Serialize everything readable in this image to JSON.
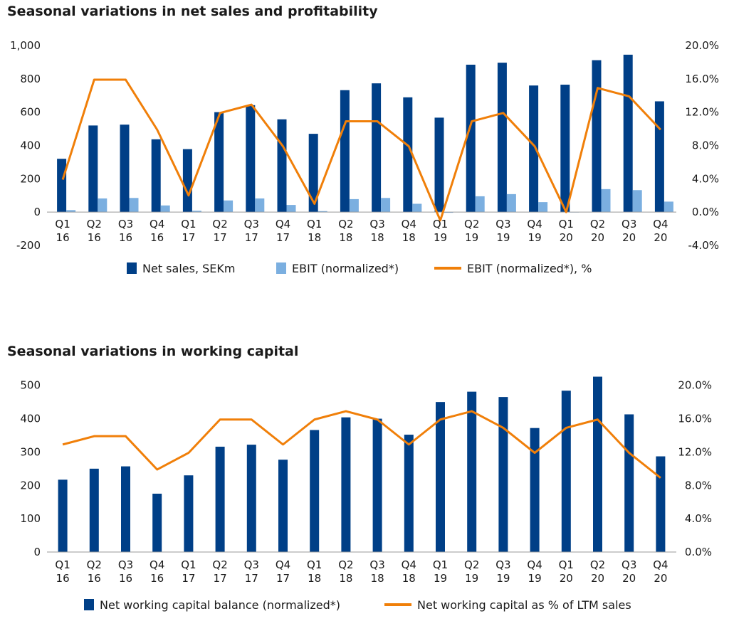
{
  "chart_data": [
    {
      "type": "bar",
      "title": "Seasonal variations in net sales and profitability",
      "categories": [
        [
          "Q1",
          "16"
        ],
        [
          "Q2",
          "16"
        ],
        [
          "Q3",
          "16"
        ],
        [
          "Q4",
          "16"
        ],
        [
          "Q1",
          "17"
        ],
        [
          "Q2",
          "17"
        ],
        [
          "Q3",
          "17"
        ],
        [
          "Q4",
          "17"
        ],
        [
          "Q1",
          "18"
        ],
        [
          "Q2",
          "18"
        ],
        [
          "Q3",
          "18"
        ],
        [
          "Q4",
          "18"
        ],
        [
          "Q1",
          "19"
        ],
        [
          "Q2",
          "19"
        ],
        [
          "Q3",
          "19"
        ],
        [
          "Q4",
          "19"
        ],
        [
          "Q1",
          "20"
        ],
        [
          "Q2",
          "20"
        ],
        [
          "Q3",
          "20"
        ],
        [
          "Q4",
          "20"
        ]
      ],
      "series": [
        {
          "name": "Net sales, SEKm",
          "kind": "bar",
          "axis": "left",
          "color": "#003F87",
          "values": [
            320,
            520,
            525,
            437,
            378,
            600,
            642,
            557,
            470,
            732,
            773,
            689,
            567,
            885,
            897,
            760,
            765,
            912,
            945,
            665
          ]
        },
        {
          "name": "EBIT (normalized*)",
          "kind": "bar",
          "axis": "left",
          "color": "#7BAFE0",
          "values": [
            12,
            82,
            85,
            40,
            8,
            70,
            82,
            43,
            6,
            78,
            85,
            50,
            -4,
            95,
            108,
            60,
            0,
            138,
            132,
            63
          ]
        },
        {
          "name": "EBIT (normalized*), %",
          "kind": "line",
          "axis": "right",
          "color": "#F07F09",
          "values": [
            0.039,
            0.159,
            0.159,
            0.099,
            0.02,
            0.119,
            0.129,
            0.079,
            0.01,
            0.109,
            0.109,
            0.079,
            -0.01,
            0.109,
            0.119,
            0.079,
            0.0,
            0.149,
            0.139,
            0.099
          ]
        }
      ],
      "ylim": [
        -200,
        1000
      ],
      "yticks": [
        -200,
        0,
        200,
        400,
        600,
        800,
        1000
      ],
      "ytick_labels": [
        "-200",
        "0",
        "200",
        "400",
        "600",
        "800",
        "1,000"
      ],
      "y2lim": [
        -0.04,
        0.2
      ],
      "y2ticks": [
        -0.04,
        0.0,
        0.04,
        0.08,
        0.12,
        0.16,
        0.2
      ],
      "y2tick_labels": [
        "-4.0%",
        "0.0%",
        "4.0%",
        "8.0%",
        "12.0%",
        "16.0%",
        "20.0%"
      ],
      "grid": false,
      "legend_position": "bottom"
    },
    {
      "type": "bar",
      "title": "Seasonal variations in working capital",
      "categories": [
        [
          "Q1",
          "16"
        ],
        [
          "Q2",
          "16"
        ],
        [
          "Q3",
          "16"
        ],
        [
          "Q4",
          "16"
        ],
        [
          "Q1",
          "17"
        ],
        [
          "Q2",
          "17"
        ],
        [
          "Q3",
          "17"
        ],
        [
          "Q4",
          "17"
        ],
        [
          "Q1",
          "18"
        ],
        [
          "Q2",
          "18"
        ],
        [
          "Q3",
          "18"
        ],
        [
          "Q4",
          "18"
        ],
        [
          "Q1",
          "19"
        ],
        [
          "Q2",
          "19"
        ],
        [
          "Q3",
          "19"
        ],
        [
          "Q4",
          "19"
        ],
        [
          "Q1",
          "20"
        ],
        [
          "Q2",
          "20"
        ],
        [
          "Q3",
          "20"
        ],
        [
          "Q4",
          "20"
        ]
      ],
      "series": [
        {
          "name": "Net working capital balance (normalized*)",
          "kind": "bar",
          "axis": "left",
          "color": "#003F87",
          "values": [
            217,
            250,
            257,
            175,
            230,
            316,
            322,
            277,
            366,
            404,
            400,
            352,
            450,
            481,
            465,
            372,
            484,
            526,
            413,
            287
          ]
        },
        {
          "name": "Net working capital as % of LTM sales",
          "kind": "line",
          "axis": "right",
          "color": "#F07F09",
          "values": [
            0.129,
            0.139,
            0.139,
            0.099,
            0.119,
            0.159,
            0.159,
            0.129,
            0.159,
            0.169,
            0.159,
            0.129,
            0.159,
            0.169,
            0.149,
            0.119,
            0.149,
            0.159,
            0.119,
            0.089
          ]
        }
      ],
      "ylim": [
        0,
        525
      ],
      "yticks": [
        0,
        100,
        200,
        300,
        400,
        500
      ],
      "ytick_labels": [
        "0",
        "100",
        "200",
        "300",
        "400",
        "500"
      ],
      "y2lim": [
        0.0,
        0.21
      ],
      "y2ticks": [
        0.0,
        0.04,
        0.08,
        0.12,
        0.16,
        0.2
      ],
      "y2tick_labels": [
        "0.0%",
        "4.0%",
        "8.0%",
        "12.0%",
        "16.0%",
        "20.0%"
      ],
      "grid": false,
      "legend_position": "bottom"
    }
  ]
}
